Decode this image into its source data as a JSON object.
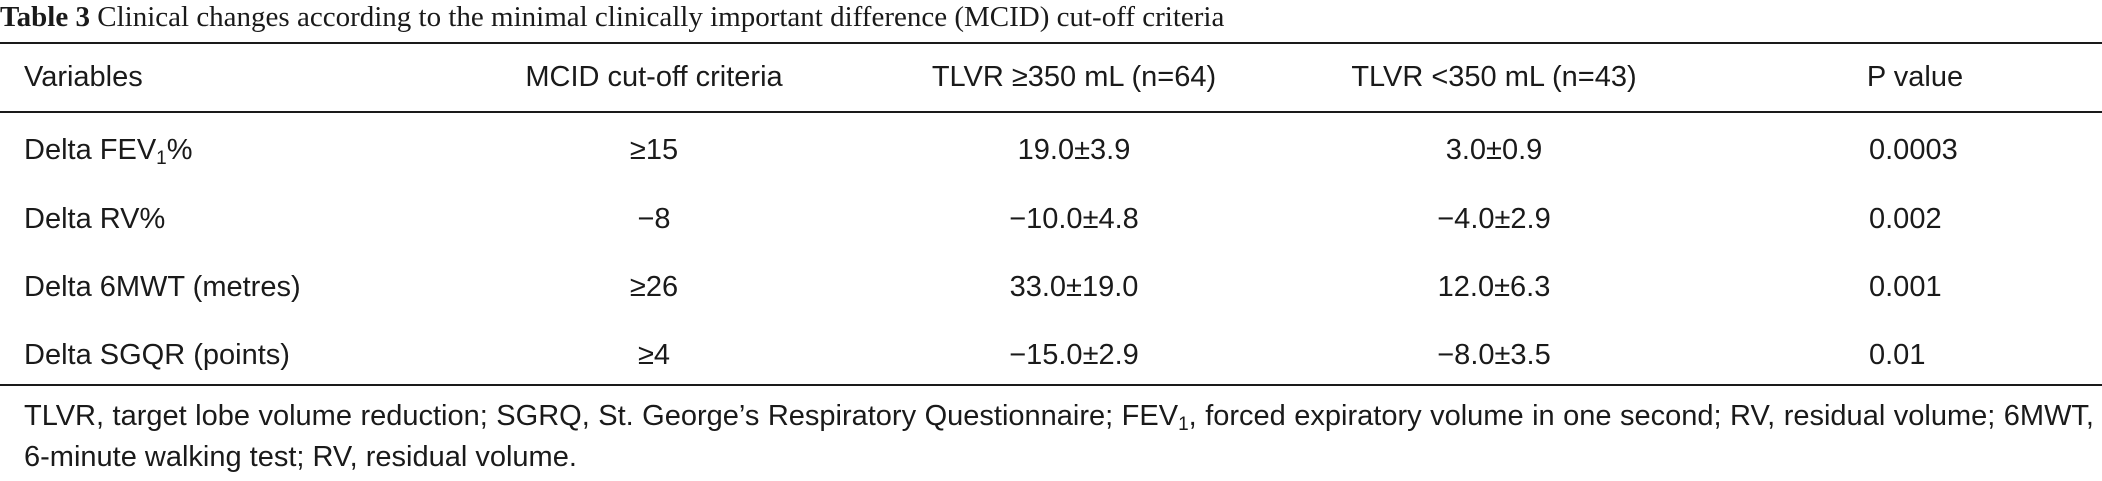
{
  "caption": {
    "label": "Table 3",
    "text": "Clinical changes according to the minimal clinically important difference (MCID) cut-off criteria"
  },
  "table": {
    "headers": [
      "Variables",
      "MCID cut-off criteria",
      "TLVR ≥350 mL (n=64)",
      "TLVR <350 mL (n=43)",
      "P value"
    ],
    "rows": [
      {
        "variable_prefix": "Delta FEV",
        "variable_sub": "1",
        "variable_suffix": "%",
        "mcid": "≥15",
        "tlvr_high": "19.0±3.9",
        "tlvr_low": "3.0±0.9",
        "p": "0.0003"
      },
      {
        "variable": "Delta RV%",
        "mcid": "−8",
        "tlvr_high": "−10.0±4.8",
        "tlvr_low": "−4.0±2.9",
        "p": "0.002"
      },
      {
        "variable": "Delta 6MWT (metres)",
        "mcid": "≥26",
        "tlvr_high": "33.0±19.0",
        "tlvr_low": "12.0±6.3",
        "p": "0.001"
      },
      {
        "variable": "Delta SGQR (points)",
        "mcid": "≥4",
        "tlvr_high": "−15.0±2.9",
        "tlvr_low": "−8.0±3.5",
        "p": "0.01"
      }
    ]
  },
  "footnote": {
    "part1": "TLVR, target lobe volume reduction; SGRQ, St. George’s Respiratory Questionnaire; FEV",
    "sub": "1",
    "part2": ", forced expiratory volume in one second; RV, residual volume; 6MWT, 6-minute walking test; RV, residual volume."
  }
}
